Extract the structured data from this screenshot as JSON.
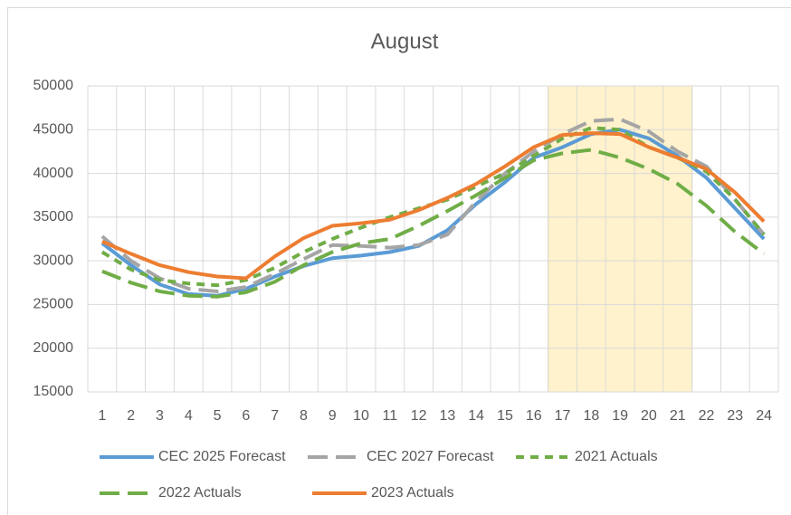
{
  "chart_data": {
    "type": "line",
    "title": "August",
    "categories": [
      1,
      2,
      3,
      4,
      5,
      6,
      7,
      8,
      9,
      10,
      11,
      12,
      13,
      14,
      15,
      16,
      17,
      18,
      19,
      20,
      21,
      22,
      23,
      24
    ],
    "ylim": [
      15000,
      50000
    ],
    "yticks": [
      15000,
      20000,
      25000,
      30000,
      35000,
      40000,
      45000,
      50000
    ],
    "grid": true,
    "highlight": {
      "from": 17,
      "to": 21,
      "color": "#fff2cc"
    },
    "series": [
      {
        "name": "CEC 2025 Forecast",
        "color": "#5b9bd5",
        "dash": "solid",
        "values": [
          32000,
          29500,
          27300,
          26200,
          26000,
          26800,
          28200,
          29400,
          30300,
          30600,
          31000,
          31700,
          33500,
          36500,
          39000,
          41800,
          43000,
          44500,
          45000,
          44000,
          42000,
          39500,
          36000,
          32500
        ]
      },
      {
        "name": "CEC 2027 Forecast",
        "color": "#a5a5a5",
        "dash": "long",
        "values": [
          32800,
          30000,
          28000,
          26800,
          26500,
          27000,
          28500,
          30200,
          31800,
          31700,
          31500,
          31800,
          33000,
          36800,
          40000,
          42500,
          44500,
          46000,
          46200,
          44800,
          42500,
          40800,
          37000,
          33000
        ]
      },
      {
        "name": "2021 Actuals",
        "color": "#70ad47",
        "dash": "short",
        "values": [
          31000,
          29000,
          27800,
          27400,
          27200,
          27800,
          29200,
          31000,
          32500,
          33800,
          35000,
          36000,
          37000,
          38500,
          40000,
          42000,
          44000,
          45200,
          45000,
          43000,
          41800,
          40200,
          37000,
          33000
        ]
      },
      {
        "name": "2022 Actuals",
        "color": "#70ad47",
        "dash": "long",
        "values": [
          28800,
          27500,
          26500,
          26000,
          25900,
          26400,
          27600,
          29500,
          31000,
          32000,
          32500,
          34000,
          35700,
          37500,
          39500,
          41500,
          42300,
          42700,
          41800,
          40500,
          38800,
          36300,
          33300,
          30800
        ]
      },
      {
        "name": "2023 Actuals",
        "color": "#ed7d31",
        "dash": "solid",
        "values": [
          32200,
          30800,
          29500,
          28700,
          28200,
          28000,
          30500,
          32600,
          34000,
          34300,
          34700,
          35800,
          37200,
          38800,
          40800,
          43000,
          44400,
          44600,
          44500,
          43000,
          41800,
          40500,
          37800,
          34500
        ]
      }
    ]
  }
}
